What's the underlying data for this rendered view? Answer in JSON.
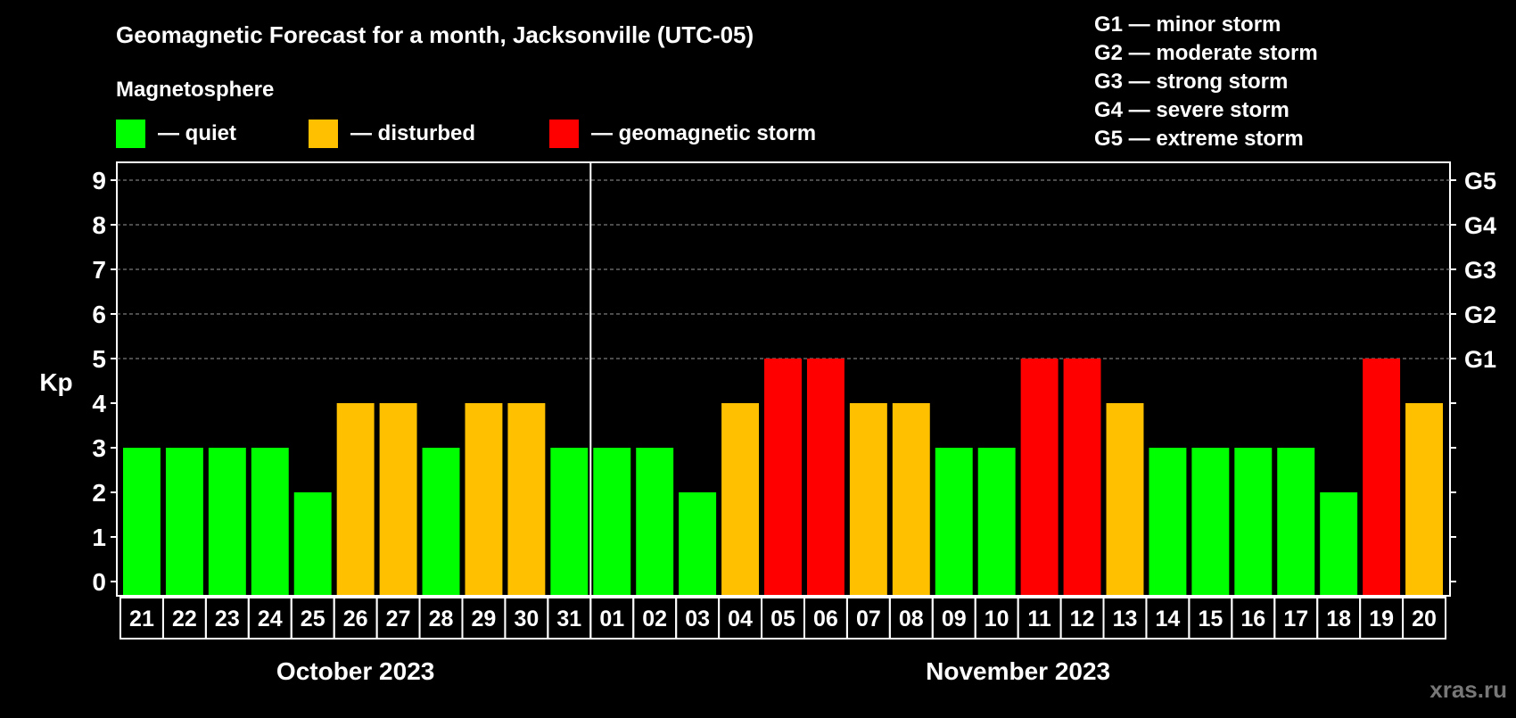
{
  "chart_data": {
    "type": "bar",
    "title": "Geomagnetic Forecast for a month, Jacksonville (UTC-05)",
    "legend_title": "Magnetosphere",
    "legend": [
      {
        "label": "— quiet",
        "color": "#00ff00"
      },
      {
        "label": "— disturbed",
        "color": "#ffc000"
      },
      {
        "label": "— geomagnetic storm",
        "color": "#ff0000"
      }
    ],
    "storm_scale": [
      "G1 — minor storm",
      "G2 — moderate storm",
      "G3 — strong storm",
      "G4 — severe storm",
      "G5 — extreme storm"
    ],
    "ylabel": "Kp",
    "ylim": [
      0,
      9
    ],
    "yticks": [
      "0",
      "1",
      "2",
      "3",
      "4",
      "5",
      "6",
      "7",
      "8",
      "9"
    ],
    "right_ticks": [
      {
        "kp": 5,
        "label": "G1"
      },
      {
        "kp": 6,
        "label": "G2"
      },
      {
        "kp": 7,
        "label": "G3"
      },
      {
        "kp": 8,
        "label": "G4"
      },
      {
        "kp": 9,
        "label": "G5"
      }
    ],
    "grid": "dashed horizontal at Kp 5-9",
    "months": [
      {
        "label": "October 2023",
        "days": [
          "21",
          "22",
          "23",
          "24",
          "25",
          "26",
          "27",
          "28",
          "29",
          "30",
          "31"
        ],
        "values": [
          3,
          3,
          3,
          3,
          2,
          4,
          4,
          3,
          4,
          4,
          3
        ]
      },
      {
        "label": "November 2023",
        "days": [
          "01",
          "02",
          "03",
          "04",
          "05",
          "06",
          "07",
          "08",
          "09",
          "10",
          "11",
          "12",
          "13",
          "14",
          "15",
          "16",
          "17",
          "18",
          "19",
          "20"
        ],
        "values": [
          3,
          3,
          2,
          4,
          5,
          5,
          4,
          4,
          3,
          3,
          5,
          5,
          4,
          3,
          3,
          3,
          3,
          2,
          5,
          4
        ]
      }
    ],
    "colors": {
      "quiet": "#00ff00",
      "disturbed": "#ffc000",
      "storm": "#ff0000"
    },
    "watermark": "xras.ru"
  }
}
